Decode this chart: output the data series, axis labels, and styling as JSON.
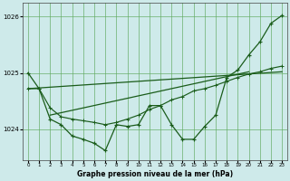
{
  "hours": [
    0,
    1,
    2,
    3,
    4,
    5,
    6,
    7,
    8,
    9,
    10,
    11,
    12,
    13,
    14,
    15,
    16,
    17,
    18,
    19,
    20,
    21,
    22,
    23
  ],
  "pressure_zigzag": [
    1025.0,
    1024.72,
    1024.18,
    1024.08,
    1023.88,
    1023.82,
    1023.75,
    1023.62,
    1024.08,
    1024.05,
    1024.08,
    1024.42,
    1024.42,
    1024.08,
    1023.82,
    1023.82,
    1024.05,
    1024.25,
    1024.92,
    1025.05,
    1025.32,
    1025.55,
    1025.88,
    1026.02
  ],
  "pressure_smooth": [
    1024.72,
    1024.72,
    1024.38,
    1024.22,
    1024.18,
    1024.15,
    1024.12,
    1024.08,
    1024.12,
    1024.18,
    1024.25,
    1024.35,
    1024.42,
    1024.52,
    1024.58,
    1024.68,
    1024.72,
    1024.78,
    1024.85,
    1024.92,
    1024.98,
    1025.02,
    1025.08,
    1025.12
  ],
  "trend_line1_x": [
    0,
    23
  ],
  "trend_line1_y": [
    1024.72,
    1025.02
  ],
  "trend_line2_x": [
    2,
    20
  ],
  "trend_line2_y": [
    1024.25,
    1025.02
  ],
  "ylim_min": 1023.45,
  "ylim_max": 1026.25,
  "yticks": [
    1024,
    1025,
    1026
  ],
  "xlim_min": -0.5,
  "xlim_max": 23.5,
  "bg_color": "#ceeaea",
  "grid_color": "#5faa5f",
  "line_color": "#1a5c1a",
  "xlabel": "Graphe pression niveau de la mer (hPa)"
}
